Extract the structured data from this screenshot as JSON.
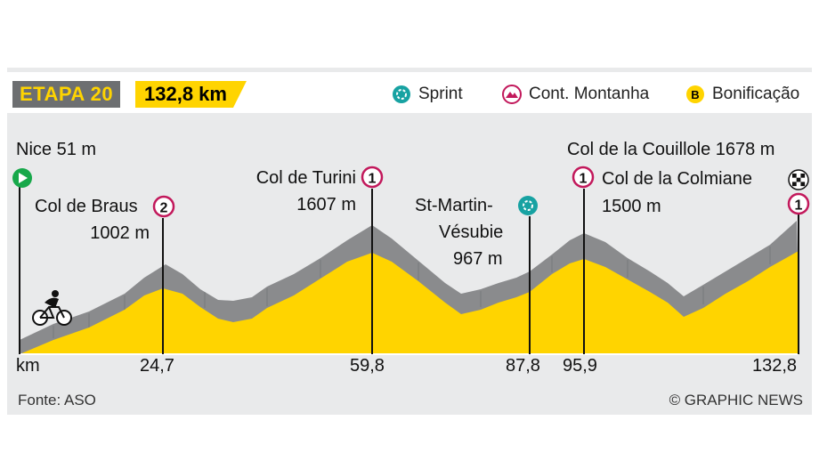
{
  "header": {
    "stage_label": "ETAPA 20",
    "distance": "132,8 km",
    "legend": {
      "sprint": "Sprint",
      "mountain": "Cont. Montanha",
      "bonus": "Bonificação"
    }
  },
  "places": {
    "start": "Nice 51 m",
    "braus_name": "Col de Braus",
    "braus_alt": "1002 m",
    "braus_cat": "2",
    "turini_name": "Col de Turini",
    "turini_alt": "1607 m",
    "turini_cat": "1",
    "stmartin_l1": "St-Martin-",
    "stmartin_l2": "Vésubie",
    "stmartin_alt": "967 m",
    "colmiane_name": "Col de la Colmiane",
    "colmiane_alt": "1500 m",
    "colmiane_cat": "1",
    "couillole": "Col de la Couillole 1678 m",
    "couillole_cat": "1",
    "bonus_letter": "B"
  },
  "axis": {
    "unit": "km",
    "ticks": [
      "24,7",
      "59,8",
      "87,8",
      "95,9",
      "132,8"
    ]
  },
  "footer": {
    "source": "Fonte: ASO",
    "credit": "© GRAPHIC NEWS"
  },
  "colors": {
    "accent": "#c2185b",
    "yellow": "#ffd400",
    "grey": "#6d6f71",
    "sprint": "#17a2a2"
  }
}
